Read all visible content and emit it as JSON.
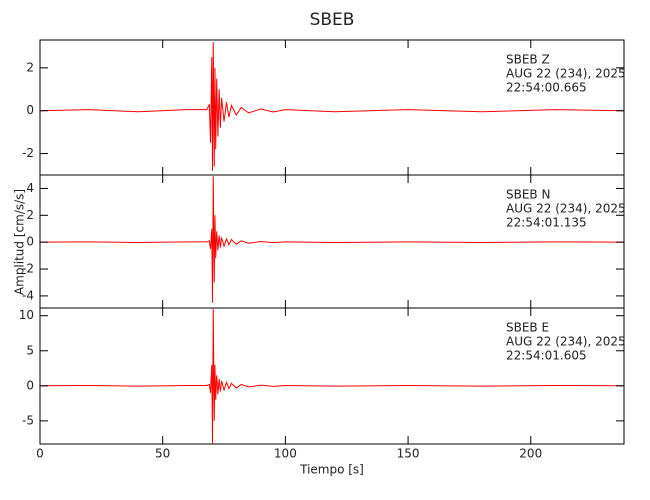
{
  "chart_data": [
    {
      "type": "line",
      "title": "SBEB",
      "color": "#ff0000",
      "annotations": [
        "SBEB   Z",
        "AUG 22 (234), 2025",
        "22:54:00.665"
      ],
      "x": [
        0,
        20,
        40,
        60,
        68,
        69,
        69.5,
        70,
        70.3,
        70.6,
        71,
        71.3,
        71.6,
        72,
        72.5,
        73,
        73.5,
        74,
        75,
        76,
        77,
        78,
        80,
        82,
        85,
        90,
        95,
        100,
        120,
        150,
        180,
        210,
        238
      ],
      "values": [
        0,
        0.05,
        -0.05,
        0.05,
        0.05,
        0.3,
        -1.5,
        2.5,
        -2.8,
        3.2,
        -2.6,
        2.0,
        -1.8,
        1.5,
        -1.2,
        1.0,
        -0.8,
        0.6,
        -0.5,
        0.4,
        -0.3,
        0.25,
        -0.2,
        0.15,
        -0.1,
        0.08,
        -0.06,
        0.05,
        -0.05,
        0.05,
        -0.05,
        0.05,
        0
      ],
      "xlim": [
        0,
        238
      ],
      "xticks": [
        0,
        50,
        100,
        150,
        200
      ],
      "ylim": [
        -3.0,
        3.3
      ],
      "yticks": [
        -2,
        0,
        2
      ]
    },
    {
      "type": "line",
      "ylabel": "Amplitud [cm/s/s]",
      "color": "#ff0000",
      "annotations": [
        "SBEB   N",
        "AUG 22 (234), 2025",
        "22:54:01.135"
      ],
      "x": [
        0,
        20,
        40,
        60,
        68,
        69,
        69.5,
        70,
        70.3,
        70.6,
        71,
        71.3,
        71.6,
        72,
        72.5,
        73,
        73.5,
        74,
        75,
        76,
        77,
        78,
        80,
        82,
        85,
        90,
        95,
        100,
        120,
        150,
        180,
        210,
        238
      ],
      "values": [
        0,
        0.02,
        -0.02,
        0.02,
        0.02,
        0.1,
        -0.5,
        1.0,
        -4.5,
        4.9,
        -3.0,
        2.0,
        -1.2,
        0.8,
        -0.6,
        0.5,
        -0.4,
        0.35,
        -0.3,
        0.25,
        -0.2,
        0.2,
        -0.15,
        0.1,
        -0.08,
        0.05,
        -0.03,
        0.02,
        -0.02,
        0.02,
        -0.02,
        0.02,
        0
      ],
      "xlim": [
        0,
        238
      ],
      "xticks": [
        0,
        50,
        100,
        150,
        200
      ],
      "ylim": [
        -4.9,
        5.0
      ],
      "yticks": [
        -4,
        -2,
        0,
        2,
        4
      ]
    },
    {
      "type": "line",
      "xlabel": "Tiempo [s]",
      "color": "#ff0000",
      "annotations": [
        "SBEB   E",
        "AUG 22 (234), 2025",
        "22:54:01.605"
      ],
      "x": [
        0,
        20,
        40,
        60,
        68,
        69,
        69.5,
        70,
        70.3,
        70.6,
        71,
        71.3,
        71.6,
        72,
        72.5,
        73,
        73.5,
        74,
        75,
        76,
        77,
        78,
        80,
        82,
        85,
        90,
        95,
        100,
        120,
        150,
        180,
        210,
        238
      ],
      "values": [
        0,
        0.05,
        -0.05,
        0.05,
        0.05,
        0.2,
        -1,
        3,
        -8.2,
        11,
        -5,
        3,
        -2,
        1.5,
        -1.2,
        1.0,
        -0.8,
        0.7,
        -0.6,
        0.5,
        -0.4,
        0.35,
        -0.3,
        0.2,
        -0.15,
        0.1,
        -0.08,
        0.05,
        -0.05,
        0.05,
        -0.05,
        0.05,
        0
      ],
      "xlim": [
        0,
        238
      ],
      "xticks": [
        0,
        50,
        100,
        150,
        200
      ],
      "ylim": [
        -8.3,
        11.1
      ],
      "yticks": [
        -5,
        0,
        5,
        10
      ]
    }
  ]
}
